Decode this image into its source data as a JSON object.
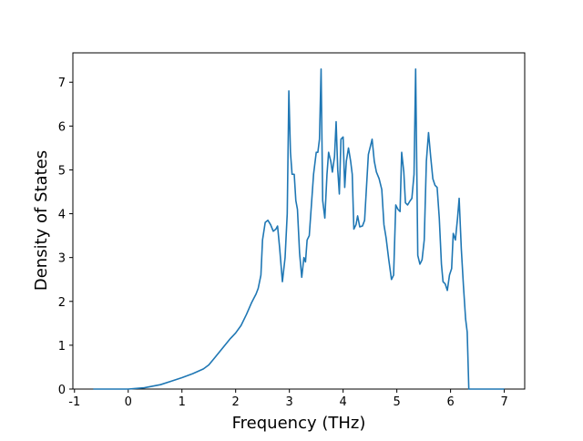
{
  "chart_data": {
    "type": "line",
    "xlabel": "Frequency (THz)",
    "ylabel": "Density of States",
    "xlim": [
      -1.03,
      7.38
    ],
    "ylim": [
      0,
      7.67
    ],
    "xticks": [
      -1,
      0,
      1,
      2,
      3,
      4,
      5,
      6,
      7
    ],
    "yticks": [
      0,
      1,
      2,
      3,
      4,
      5,
      6,
      7
    ],
    "series": [
      {
        "color": "#1f77b4",
        "x": [
          -0.65,
          0,
          0.3,
          0.6,
          0.8,
          1.0,
          1.2,
          1.4,
          1.5,
          1.6,
          1.7,
          1.8,
          1.9,
          2.0,
          2.1,
          2.2,
          2.3,
          2.38,
          2.42,
          2.47,
          2.5,
          2.55,
          2.6,
          2.65,
          2.7,
          2.75,
          2.78,
          2.82,
          2.87,
          2.92,
          2.96,
          2.99,
          3.02,
          3.05,
          3.09,
          3.12,
          3.15,
          3.19,
          3.23,
          3.27,
          3.3,
          3.33,
          3.37,
          3.41,
          3.45,
          3.5,
          3.53,
          3.56,
          3.59,
          3.62,
          3.66,
          3.7,
          3.73,
          3.77,
          3.8,
          3.84,
          3.87,
          3.9,
          3.93,
          3.96,
          4.0,
          4.03,
          4.06,
          4.1,
          4.14,
          4.17,
          4.2,
          4.24,
          4.27,
          4.31,
          4.36,
          4.4,
          4.43,
          4.47,
          4.5,
          4.54,
          4.58,
          4.62,
          4.67,
          4.72,
          4.76,
          4.8,
          4.85,
          4.9,
          4.94,
          4.98,
          5.02,
          5.06,
          5.09,
          5.13,
          5.16,
          5.2,
          5.25,
          5.28,
          5.32,
          5.35,
          5.39,
          5.43,
          5.47,
          5.51,
          5.55,
          5.59,
          5.63,
          5.67,
          5.71,
          5.75,
          5.79,
          5.83,
          5.86,
          5.9,
          5.94,
          5.98,
          6.02,
          6.05,
          6.09,
          6.13,
          6.16,
          6.2,
          6.24,
          6.28,
          6.31,
          6.34,
          6.4,
          7.0
        ],
        "values": [
          0,
          0,
          0.03,
          0.1,
          0.18,
          0.26,
          0.35,
          0.46,
          0.55,
          0.7,
          0.85,
          1.0,
          1.15,
          1.28,
          1.45,
          1.7,
          1.98,
          2.17,
          2.3,
          2.6,
          3.4,
          3.8,
          3.85,
          3.75,
          3.6,
          3.65,
          3.72,
          3.2,
          2.45,
          3.0,
          4.0,
          6.8,
          5.4,
          4.9,
          4.9,
          4.3,
          4.1,
          3.1,
          2.55,
          3.0,
          2.9,
          3.4,
          3.5,
          4.2,
          4.9,
          5.4,
          5.4,
          5.7,
          7.3,
          4.3,
          3.9,
          4.9,
          5.4,
          5.2,
          4.95,
          5.3,
          6.1,
          5.0,
          4.45,
          5.7,
          5.75,
          4.6,
          5.2,
          5.5,
          5.2,
          4.9,
          3.65,
          3.75,
          3.95,
          3.7,
          3.72,
          3.85,
          4.5,
          5.35,
          5.5,
          5.7,
          5.2,
          4.95,
          4.8,
          4.55,
          3.75,
          3.45,
          2.95,
          2.5,
          2.6,
          4.2,
          4.1,
          4.05,
          5.4,
          4.95,
          4.25,
          4.2,
          4.3,
          4.35,
          4.9,
          7.3,
          3.05,
          2.85,
          2.95,
          3.4,
          5.2,
          5.85,
          5.3,
          4.8,
          4.65,
          4.6,
          3.9,
          2.85,
          2.45,
          2.4,
          2.25,
          2.6,
          2.75,
          3.55,
          3.4,
          3.9,
          4.35,
          3.2,
          2.35,
          1.6,
          1.3,
          0,
          0,
          0
        ]
      }
    ]
  }
}
